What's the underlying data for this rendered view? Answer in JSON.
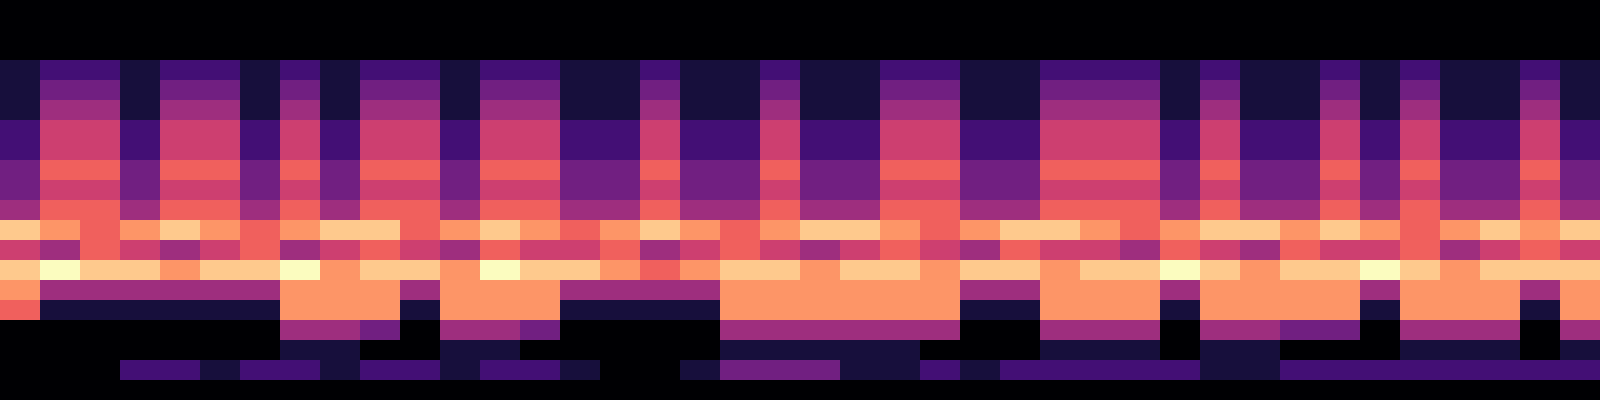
{
  "chart_data": {
    "type": "heatmap",
    "tick_labels": false,
    "cells": [
      [
        0,
        0,
        0,
        0,
        0,
        0,
        0,
        0,
        0,
        0,
        0,
        0,
        0,
        0,
        0,
        0,
        0,
        0,
        0,
        0,
        0,
        0,
        0,
        0,
        0,
        0,
        0,
        0,
        0,
        0,
        0,
        0,
        0,
        0,
        0,
        0,
        0,
        0,
        0,
        0
      ],
      [
        0,
        0,
        0,
        0,
        0,
        0,
        0,
        0,
        0,
        0,
        0,
        0,
        0,
        0,
        0,
        0,
        0,
        0,
        0,
        0,
        0,
        0,
        0,
        0,
        0,
        0,
        0,
        0,
        0,
        0,
        0,
        0,
        0,
        0,
        0,
        0,
        0,
        0,
        0,
        0
      ],
      [
        0,
        0,
        0,
        0,
        0,
        0,
        0,
        0,
        0,
        0,
        0,
        0,
        0,
        0,
        0,
        0,
        0,
        0,
        0,
        0,
        0,
        0,
        0,
        0,
        0,
        0,
        0,
        0,
        0,
        0,
        0,
        0,
        0,
        0,
        0,
        0,
        0,
        0,
        0,
        0
      ],
      [
        1,
        2,
        2,
        1,
        2,
        2,
        1,
        2,
        1,
        2,
        2,
        1,
        2,
        2,
        1,
        1,
        2,
        1,
        1,
        2,
        1,
        1,
        2,
        2,
        1,
        1,
        2,
        2,
        2,
        1,
        2,
        1,
        1,
        2,
        1,
        2,
        1,
        1,
        2,
        1
      ],
      [
        1,
        3,
        3,
        1,
        3,
        3,
        1,
        3,
        1,
        3,
        3,
        1,
        3,
        3,
        1,
        1,
        3,
        1,
        1,
        3,
        1,
        1,
        3,
        3,
        1,
        1,
        3,
        3,
        3,
        1,
        3,
        1,
        1,
        3,
        1,
        3,
        1,
        1,
        3,
        1
      ],
      [
        1,
        4,
        4,
        1,
        4,
        4,
        1,
        4,
        1,
        4,
        4,
        1,
        4,
        4,
        1,
        1,
        4,
        1,
        1,
        4,
        1,
        1,
        4,
        4,
        1,
        1,
        4,
        4,
        4,
        1,
        4,
        1,
        1,
        4,
        1,
        4,
        1,
        1,
        4,
        1
      ],
      [
        2,
        5,
        5,
        2,
        5,
        5,
        2,
        5,
        2,
        5,
        5,
        2,
        5,
        5,
        2,
        2,
        5,
        2,
        2,
        5,
        2,
        2,
        5,
        5,
        2,
        2,
        5,
        5,
        5,
        2,
        5,
        2,
        2,
        5,
        2,
        5,
        2,
        2,
        5,
        2
      ],
      [
        2,
        5,
        5,
        2,
        5,
        5,
        2,
        5,
        2,
        5,
        5,
        2,
        5,
        5,
        2,
        2,
        5,
        2,
        2,
        5,
        2,
        2,
        5,
        5,
        2,
        2,
        5,
        5,
        5,
        2,
        5,
        2,
        2,
        5,
        2,
        5,
        2,
        2,
        5,
        2
      ],
      [
        3,
        6,
        6,
        3,
        6,
        6,
        3,
        6,
        3,
        6,
        6,
        3,
        6,
        6,
        3,
        3,
        6,
        3,
        3,
        6,
        3,
        3,
        6,
        6,
        3,
        3,
        6,
        6,
        6,
        3,
        6,
        3,
        3,
        6,
        3,
        6,
        3,
        3,
        6,
        3
      ],
      [
        3,
        5,
        5,
        3,
        5,
        5,
        3,
        5,
        3,
        5,
        5,
        3,
        5,
        5,
        3,
        3,
        5,
        3,
        3,
        5,
        3,
        3,
        5,
        5,
        3,
        3,
        5,
        5,
        5,
        3,
        5,
        3,
        3,
        5,
        3,
        5,
        3,
        3,
        5,
        3
      ],
      [
        4,
        6,
        6,
        4,
        6,
        6,
        4,
        6,
        4,
        6,
        6,
        4,
        6,
        6,
        4,
        4,
        6,
        4,
        4,
        6,
        4,
        4,
        6,
        6,
        4,
        4,
        6,
        6,
        6,
        4,
        6,
        4,
        4,
        6,
        4,
        6,
        4,
        4,
        6,
        4
      ],
      [
        8,
        7,
        6,
        7,
        8,
        7,
        6,
        7,
        8,
        8,
        6,
        7,
        8,
        7,
        6,
        7,
        8,
        7,
        6,
        7,
        8,
        8,
        7,
        6,
        7,
        8,
        8,
        7,
        6,
        7,
        8,
        8,
        7,
        8,
        7,
        6,
        7,
        8,
        7,
        8
      ],
      [
        5,
        4,
        6,
        5,
        4,
        5,
        6,
        4,
        5,
        6,
        5,
        4,
        6,
        5,
        5,
        6,
        4,
        5,
        6,
        5,
        4,
        5,
        6,
        5,
        4,
        6,
        5,
        5,
        4,
        6,
        5,
        4,
        6,
        5,
        5,
        6,
        4,
        5,
        6,
        5
      ],
      [
        8,
        9,
        8,
        8,
        7,
        8,
        8,
        9,
        7,
        8,
        8,
        7,
        9,
        8,
        8,
        7,
        6,
        7,
        8,
        8,
        7,
        8,
        8,
        7,
        8,
        8,
        7,
        8,
        8,
        9,
        8,
        7,
        8,
        8,
        9,
        8,
        7,
        8,
        8,
        8
      ],
      [
        7,
        4,
        4,
        4,
        4,
        4,
        4,
        7,
        7,
        7,
        4,
        7,
        7,
        7,
        4,
        4,
        4,
        4,
        7,
        7,
        7,
        7,
        7,
        7,
        4,
        4,
        7,
        7,
        7,
        4,
        7,
        7,
        7,
        7,
        4,
        7,
        7,
        7,
        4,
        7
      ],
      [
        6,
        1,
        1,
        1,
        1,
        1,
        1,
        7,
        7,
        7,
        1,
        7,
        7,
        7,
        1,
        1,
        1,
        1,
        7,
        7,
        7,
        7,
        7,
        7,
        1,
        1,
        7,
        7,
        7,
        1,
        7,
        7,
        7,
        7,
        1,
        7,
        7,
        7,
        1,
        7
      ],
      [
        0,
        0,
        0,
        0,
        0,
        0,
        0,
        4,
        4,
        3,
        0,
        4,
        4,
        3,
        0,
        0,
        0,
        0,
        4,
        4,
        4,
        4,
        4,
        4,
        0,
        0,
        4,
        4,
        4,
        0,
        4,
        4,
        3,
        3,
        0,
        4,
        4,
        4,
        0,
        4
      ],
      [
        0,
        0,
        0,
        0,
        0,
        0,
        0,
        1,
        1,
        0,
        0,
        1,
        1,
        0,
        0,
        0,
        0,
        0,
        1,
        1,
        1,
        1,
        1,
        0,
        0,
        0,
        1,
        1,
        1,
        0,
        1,
        1,
        0,
        0,
        0,
        1,
        1,
        1,
        0,
        1
      ],
      [
        0,
        0,
        0,
        2,
        2,
        1,
        2,
        2,
        1,
        2,
        2,
        1,
        2,
        2,
        1,
        0,
        0,
        1,
        3,
        3,
        3,
        1,
        1,
        2,
        1,
        2,
        2,
        2,
        2,
        2,
        1,
        1,
        2,
        2,
        2,
        2,
        2,
        2,
        2,
        2
      ],
      [
        0,
        0,
        0,
        0,
        0,
        0,
        0,
        0,
        0,
        0,
        0,
        0,
        0,
        0,
        0,
        0,
        0,
        0,
        0,
        0,
        0,
        0,
        0,
        0,
        0,
        0,
        0,
        0,
        0,
        0,
        0,
        0,
        0,
        0,
        0,
        0,
        0,
        0,
        0,
        0
      ]
    ]
  }
}
